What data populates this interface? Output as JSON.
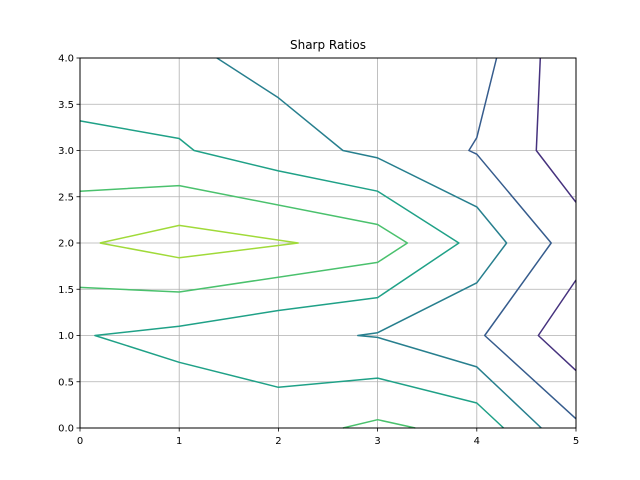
{
  "chart_data": {
    "type": "contour",
    "title": "Sharp Ratios",
    "xlabel": "",
    "ylabel": "",
    "xlim": [
      0,
      5
    ],
    "ylim": [
      0,
      4
    ],
    "grid": true,
    "x_ticks": [
      "0",
      "1",
      "2",
      "3",
      "4",
      "5"
    ],
    "y_ticks": [
      "0.0",
      "0.5",
      "1.0",
      "1.5",
      "2.0",
      "2.5",
      "3.0",
      "3.5",
      "4.0"
    ],
    "contours": [
      {
        "color": "#a0da39",
        "points": [
          [
            0.2,
            2.0
          ],
          [
            1.0,
            2.19
          ],
          [
            2.2,
            2.0
          ],
          [
            1.0,
            1.84
          ],
          [
            0.2,
            2.0
          ]
        ]
      },
      {
        "color": "#4ac16d",
        "points": [
          [
            0.0,
            2.56
          ],
          [
            1.0,
            2.62
          ],
          [
            3.0,
            2.2
          ],
          [
            3.3,
            2.0
          ],
          [
            3.0,
            1.79
          ],
          [
            1.0,
            1.47
          ],
          [
            0.0,
            1.52
          ]
        ]
      },
      {
        "color": "#4ac16d",
        "points": [
          [
            2.65,
            0.0
          ],
          [
            3.0,
            0.09
          ],
          [
            3.38,
            0.0
          ]
        ]
      },
      {
        "color": "#1fa187",
        "points": [
          [
            0.0,
            3.32
          ],
          [
            1.0,
            3.13
          ],
          [
            1.15,
            3.0
          ],
          [
            2.0,
            2.78
          ],
          [
            3.0,
            2.56
          ],
          [
            3.82,
            2.0
          ],
          [
            3.0,
            1.41
          ],
          [
            2.0,
            1.27
          ],
          [
            1.0,
            1.1
          ],
          [
            0.15,
            1.0
          ],
          [
            1.0,
            0.71
          ],
          [
            2.0,
            0.44
          ],
          [
            3.0,
            0.54
          ],
          [
            4.0,
            0.27
          ],
          [
            4.27,
            0.0
          ]
        ]
      },
      {
        "color": "#277f8e",
        "points": [
          [
            1.38,
            4.0
          ],
          [
            2.0,
            3.57
          ],
          [
            2.65,
            3.0
          ],
          [
            3.0,
            2.92
          ],
          [
            4.0,
            2.39
          ],
          [
            4.3,
            2.0
          ],
          [
            4.0,
            1.57
          ],
          [
            3.0,
            1.03
          ],
          [
            2.8,
            1.0
          ],
          [
            3.0,
            0.98
          ],
          [
            4.0,
            0.66
          ],
          [
            4.65,
            0.0
          ]
        ]
      },
      {
        "color": "#365c8d",
        "points": [
          [
            4.2,
            4.0
          ],
          [
            4.0,
            3.14
          ],
          [
            3.92,
            3.0
          ],
          [
            4.0,
            2.96
          ],
          [
            4.75,
            2.0
          ],
          [
            4.08,
            1.0
          ],
          [
            5.0,
            0.1
          ]
        ]
      },
      {
        "color": "#46327e",
        "points": [
          [
            4.64,
            4.0
          ],
          [
            4.6,
            3.0
          ],
          [
            5.0,
            2.44
          ]
        ]
      },
      {
        "color": "#46327e",
        "points": [
          [
            5.0,
            1.6
          ],
          [
            4.62,
            1.0
          ],
          [
            5.0,
            0.62
          ]
        ]
      }
    ]
  }
}
